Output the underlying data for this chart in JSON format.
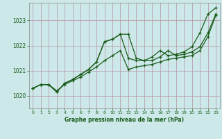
{
  "title": "Graphe pression niveau de la mer (hPa)",
  "bg_color": "#cce8e8",
  "grid_color": "#b8a0b0",
  "line_color": "#1a5c1a",
  "xlim": [
    -0.5,
    23.5
  ],
  "ylim": [
    1019.5,
    1023.7
  ],
  "yticks": [
    1020,
    1021,
    1022,
    1023
  ],
  "xticks": [
    0,
    1,
    2,
    3,
    4,
    5,
    6,
    7,
    8,
    9,
    10,
    11,
    12,
    13,
    14,
    15,
    16,
    17,
    18,
    19,
    20,
    21,
    22,
    23
  ],
  "line1_x": [
    0,
    1,
    2,
    3,
    4,
    5,
    6,
    7,
    8,
    9,
    10,
    11,
    12,
    13,
    14,
    15,
    16,
    17,
    18,
    19,
    20,
    21,
    22,
    23
  ],
  "line1_y": [
    1020.3,
    1020.45,
    1020.45,
    1020.2,
    1020.45,
    1020.6,
    1020.75,
    1020.95,
    1021.15,
    1021.4,
    1021.6,
    1021.8,
    1021.05,
    1021.15,
    1021.2,
    1021.25,
    1021.35,
    1021.45,
    1021.5,
    1021.55,
    1021.6,
    1021.8,
    1022.35,
    1023.2
  ],
  "line2_x": [
    0,
    1,
    2,
    3,
    4,
    5,
    6,
    7,
    8,
    9,
    10,
    11,
    12,
    13,
    14,
    15,
    16,
    17,
    18,
    19,
    20,
    21,
    22,
    23
  ],
  "line2_y": [
    1020.3,
    1020.45,
    1020.45,
    1020.15,
    1020.5,
    1020.65,
    1020.85,
    1021.05,
    1021.35,
    1022.15,
    1022.25,
    1022.45,
    1022.45,
    1021.5,
    1021.4,
    1021.4,
    1021.55,
    1021.8,
    1021.6,
    1021.65,
    1021.75,
    1021.95,
    1022.5,
    1023.25
  ],
  "line3_x": [
    0,
    1,
    2,
    3,
    4,
    5,
    6,
    7,
    8,
    9,
    10,
    11,
    12,
    13,
    14,
    15,
    16,
    17,
    18,
    19,
    20,
    21,
    22,
    23
  ],
  "line3_y": [
    1020.3,
    1020.45,
    1020.45,
    1020.15,
    1020.5,
    1020.65,
    1020.85,
    1021.05,
    1021.35,
    1022.15,
    1022.25,
    1022.45,
    1021.5,
    1021.4,
    1021.4,
    1021.55,
    1021.8,
    1021.6,
    1021.65,
    1021.75,
    1021.95,
    1022.5,
    1023.25,
    1023.5
  ]
}
